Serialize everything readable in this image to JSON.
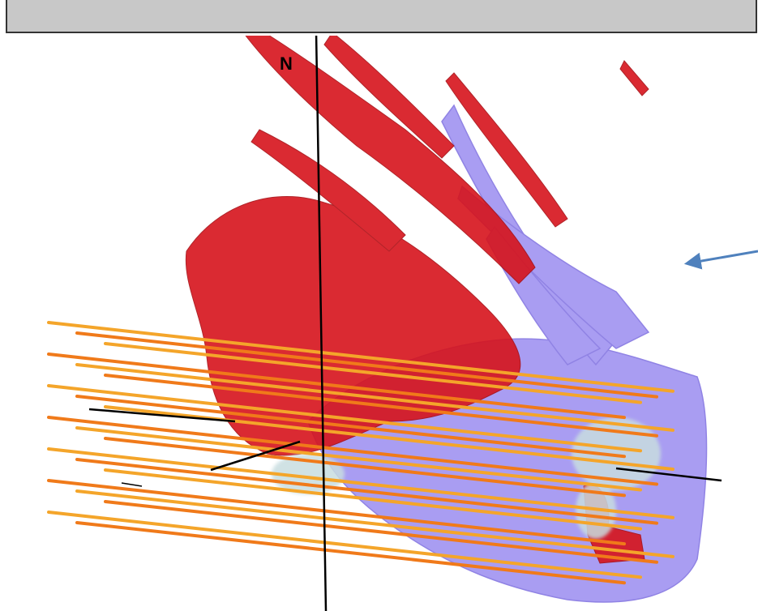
{
  "labels": {
    "north": "N"
  }
}
